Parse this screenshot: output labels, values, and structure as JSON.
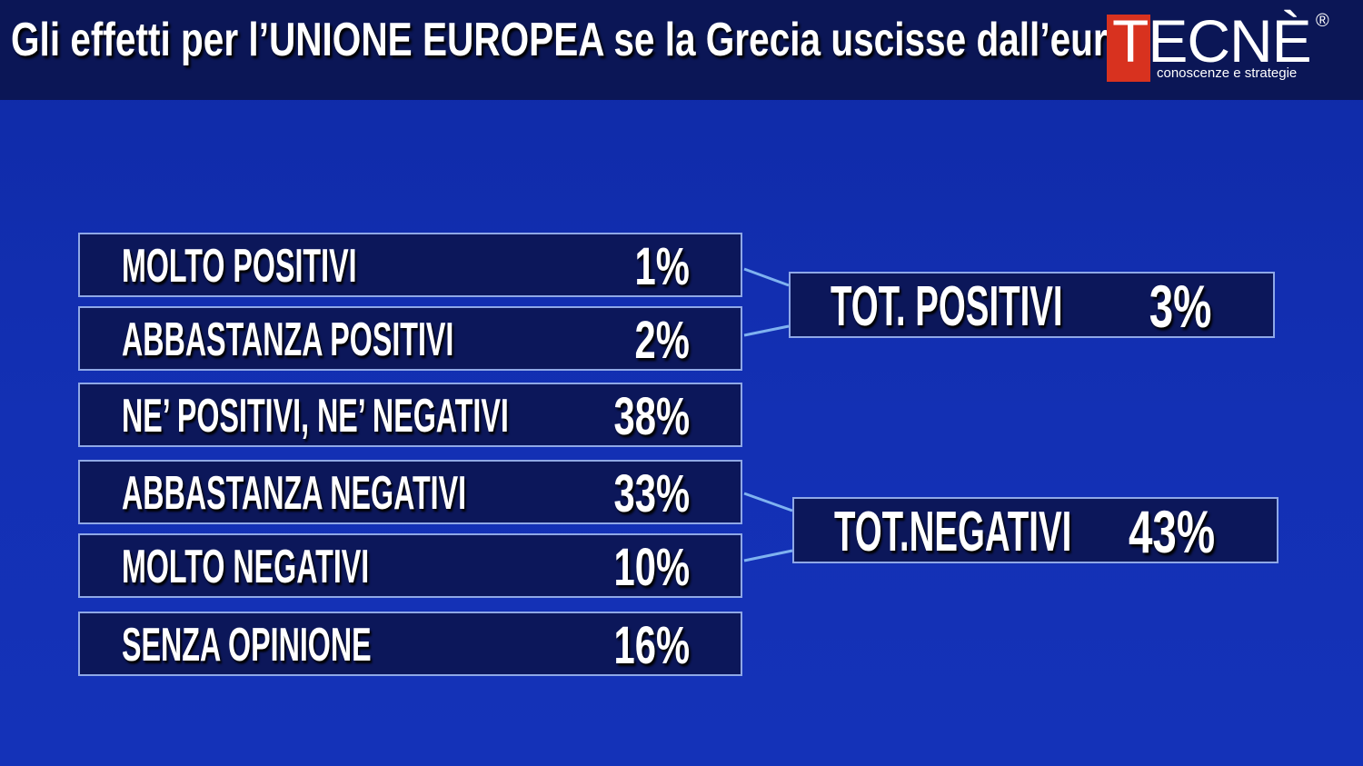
{
  "header": {
    "title": "Gli effetti per l’UNIONE EUROPEA se la Grecia uscisse dall’euro"
  },
  "logo": {
    "name": "TECNÈ",
    "registered": "®",
    "tagline": "conoscenze e strategie",
    "accent_color": "#d8321f"
  },
  "chart_data": {
    "type": "table",
    "title": "Gli effetti per l’UNIONE EUROPEA se la Grecia uscisse dall’euro",
    "rows": [
      {
        "label": "MOLTO POSITIVI",
        "value": 1,
        "display": "1%"
      },
      {
        "label": "ABBASTANZA POSITIVI",
        "value": 2,
        "display": "2%"
      },
      {
        "label": "NE’ POSITIVI, NE’ NEGATIVI",
        "value": 38,
        "display": "38%"
      },
      {
        "label": "ABBASTANZA NEGATIVI",
        "value": 33,
        "display": "33%"
      },
      {
        "label": "MOLTO NEGATIVI",
        "value": 10,
        "display": "10%"
      },
      {
        "label": "SENZA OPINIONE",
        "value": 16,
        "display": "16%"
      }
    ],
    "totals": [
      {
        "label": "TOT. POSITIVI",
        "value": 3,
        "display": "3%"
      },
      {
        "label": "TOT.NEGATIVI",
        "value": 43,
        "display": "43%"
      }
    ]
  }
}
